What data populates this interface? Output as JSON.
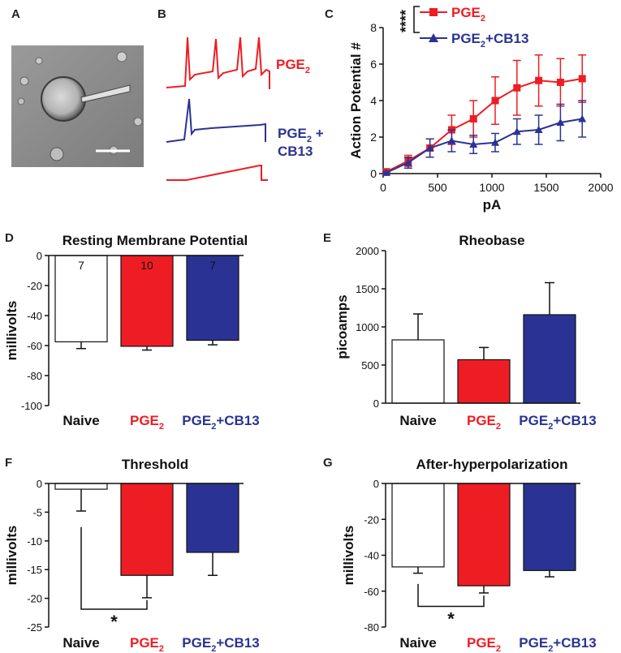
{
  "colors": {
    "naive": "#ffffff",
    "pge2": "#ee1d23",
    "pge2_cb13": "#2a3393",
    "dark": "#111111"
  },
  "panel_letters": {
    "a": "A",
    "b": "B",
    "c": "C",
    "d": "D",
    "e": "E",
    "f": "F",
    "g": "G"
  },
  "panel_a": {
    "description_icon": "microscope-cell-image"
  },
  "panel_b": {
    "label_pge2": "PGE",
    "label_pge2_sub": "2",
    "label_cb13_line1": "PGE",
    "label_cb13_sub": "2",
    "label_cb13_suffix": " +",
    "label_cb13_line2": "CB13"
  },
  "categories": [
    {
      "name": "Naive",
      "sub": "",
      "suffix": "",
      "color": "#111111"
    },
    {
      "name": "PGE",
      "sub": "2",
      "suffix": "",
      "color": "#ee1d23"
    },
    {
      "name": "PGE",
      "sub": "2",
      "suffix": "+CB13",
      "color": "#2a3393"
    }
  ],
  "chart_data": [
    {
      "id": "C",
      "type": "line",
      "ylabel": "Action Potential #",
      "xlabel": "pA",
      "xlim": [
        0,
        2000
      ],
      "ylim": [
        0,
        8
      ],
      "xticks": [
        0,
        500,
        1000,
        1500,
        2000
      ],
      "yticks": [
        0,
        2,
        4,
        6,
        8
      ],
      "significance": "****",
      "series": [
        {
          "name": "PGE",
          "sub": "2",
          "suffix": "",
          "color": "#ee1d23",
          "marker": "square",
          "x": [
            30,
            230,
            430,
            630,
            830,
            1030,
            1230,
            1430,
            1630,
            1830
          ],
          "y": [
            0.1,
            0.7,
            1.4,
            2.4,
            3.0,
            4.0,
            4.7,
            5.1,
            5.0,
            5.2
          ],
          "err": [
            0.1,
            0.3,
            0.5,
            0.8,
            1.0,
            1.3,
            1.5,
            1.4,
            1.3,
            1.3
          ]
        },
        {
          "name": "PGE",
          "sub": "2",
          "suffix": "+CB13",
          "color": "#2a3393",
          "marker": "triangle",
          "x": [
            30,
            230,
            430,
            630,
            830,
            1030,
            1230,
            1430,
            1630,
            1830
          ],
          "y": [
            0.05,
            0.6,
            1.4,
            1.8,
            1.6,
            1.7,
            2.3,
            2.4,
            2.8,
            3.0
          ],
          "err": [
            0.05,
            0.3,
            0.5,
            0.6,
            0.5,
            0.5,
            0.7,
            0.8,
            1.0,
            1.0
          ]
        }
      ]
    },
    {
      "id": "D",
      "type": "bar",
      "title": "Resting Membrane Potential",
      "ylabel": "millivolts",
      "ylim": [
        -100,
        0
      ],
      "yticks": [
        0,
        -20,
        -40,
        -60,
        -80,
        -100
      ],
      "values": [
        -57.5,
        -60.5,
        -56.5
      ],
      "errors": [
        4.5,
        2.5,
        3
      ],
      "n_labels": [
        "7",
        "10",
        "7"
      ]
    },
    {
      "id": "E",
      "type": "bar",
      "title": "Rheobase",
      "ylabel": "picoamps",
      "ylim": [
        0,
        2000
      ],
      "yticks": [
        0,
        500,
        1000,
        1500,
        2000
      ],
      "values": [
        830,
        570,
        1160
      ],
      "errors": [
        340,
        160,
        420
      ]
    },
    {
      "id": "F",
      "type": "bar",
      "title": "Threshold",
      "ylabel": "millivolts",
      "ylim": [
        -25,
        0
      ],
      "yticks": [
        0,
        -5,
        -10,
        -15,
        -20,
        -25
      ],
      "values": [
        -1,
        -16,
        -12
      ],
      "errors": [
        3.8,
        3.9,
        4
      ],
      "significance": "*"
    },
    {
      "id": "G",
      "type": "bar",
      "title": "After-hyperpolarization",
      "ylabel": "millivolts",
      "ylim": [
        -80,
        0
      ],
      "yticks": [
        0,
        -20,
        -40,
        -60,
        -80
      ],
      "values": [
        -46.5,
        -57,
        -48.5
      ],
      "errors": [
        3.5,
        4,
        3.5
      ],
      "significance": "*"
    }
  ]
}
